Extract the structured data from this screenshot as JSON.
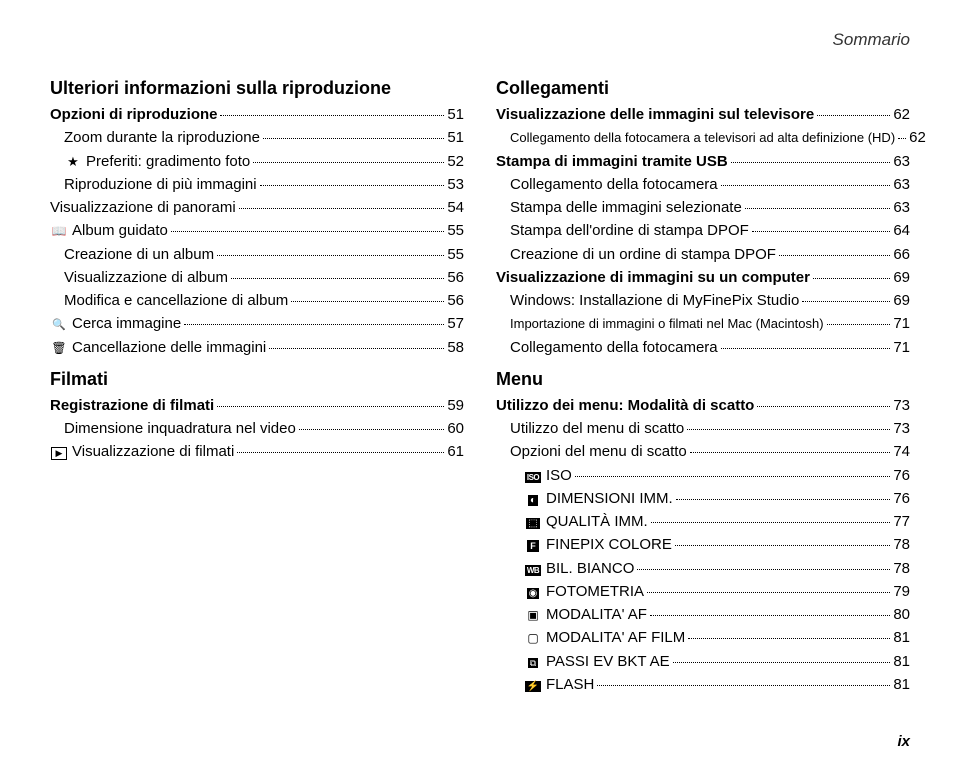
{
  "header": "Sommario",
  "page_number": "ix",
  "left": [
    {
      "type": "heading",
      "text": "Ulteriori informazioni sulla riproduzione"
    },
    {
      "label": "Opzioni di riproduzione",
      "page": "51",
      "bold": true
    },
    {
      "label": "Zoom durante la riproduzione",
      "page": "51",
      "indent": 1
    },
    {
      "label": "Preferiti: gradimento foto",
      "page": "52",
      "indent": 1,
      "icon": "ico-star"
    },
    {
      "label": "Riproduzione di più immagini",
      "page": "53",
      "indent": 1
    },
    {
      "label": "Visualizzazione di panorami",
      "page": "54"
    },
    {
      "label": "Album guidato",
      "page": "55",
      "icon": "ico-book"
    },
    {
      "label": "Creazione di un album",
      "page": "55",
      "indent": 1
    },
    {
      "label": "Visualizzazione di album",
      "page": "56",
      "indent": 1
    },
    {
      "label": "Modifica e cancellazione di album",
      "page": "56",
      "indent": 1
    },
    {
      "label": "Cerca immagine",
      "page": "57",
      "icon": "ico-search"
    },
    {
      "label": "Cancellazione delle immagini",
      "page": "58",
      "icon": "ico-trash"
    },
    {
      "type": "heading",
      "text": "Filmati"
    },
    {
      "label": "Registrazione di filmati",
      "page": "59",
      "bold": true
    },
    {
      "label": "Dimensione inquadratura nel video",
      "page": "60",
      "indent": 1
    },
    {
      "label": "Visualizzazione di filmati",
      "page": "61",
      "icon": "ico-play"
    }
  ],
  "right": [
    {
      "type": "heading",
      "text": "Collegamenti"
    },
    {
      "label": "Visualizzazione delle immagini sul televisore",
      "page": "62",
      "bold": true
    },
    {
      "label": "Collegamento della fotocamera a televisori ad alta definizione (HD)",
      "page": "62",
      "indent": 1,
      "small": true
    },
    {
      "label": "Stampa di immagini tramite USB",
      "page": "63",
      "bold": true
    },
    {
      "label": "Collegamento della fotocamera",
      "page": "63",
      "indent": 1
    },
    {
      "label": "Stampa delle immagini selezionate",
      "page": "63",
      "indent": 1
    },
    {
      "label": "Stampa dell'ordine di stampa DPOF",
      "page": "64",
      "indent": 1
    },
    {
      "label": "Creazione di un ordine di stampa DPOF",
      "page": "66",
      "indent": 1
    },
    {
      "label": "Visualizzazione di immagini su un computer",
      "page": "69",
      "bold": true
    },
    {
      "label": "Windows: Installazione di MyFinePix Studio",
      "page": "69",
      "indent": 1
    },
    {
      "label": "Importazione di immagini o filmati nel Mac (Macintosh)",
      "page": "71",
      "indent": 1,
      "small": true
    },
    {
      "label": "Collegamento della fotocamera",
      "page": "71",
      "indent": 1
    },
    {
      "type": "heading",
      "text": "Menu"
    },
    {
      "label": "Utilizzo dei menu: Modalità di scatto",
      "page": "73",
      "bold": true
    },
    {
      "label": "Utilizzo del menu di scatto",
      "page": "73",
      "indent": 1
    },
    {
      "label": "Opzioni del menu di scatto",
      "page": "74",
      "indent": 1
    },
    {
      "label": "ISO",
      "page": "76",
      "indent": 2,
      "icon": "ico-iso"
    },
    {
      "label": "DIMENSIONI IMM.",
      "page": "76",
      "indent": 2,
      "icon": "ico-dim"
    },
    {
      "label": "QUALITÀ IMM.",
      "page": "77",
      "indent": 2,
      "icon": "ico-qual"
    },
    {
      "label": "FINEPIX COLORE",
      "page": "78",
      "indent": 2,
      "icon": "ico-fpc"
    },
    {
      "label": "BIL. BIANCO",
      "page": "78",
      "indent": 2,
      "icon": "ico-wb"
    },
    {
      "label": "FOTOMETRIA",
      "page": "79",
      "indent": 2,
      "icon": "ico-meter"
    },
    {
      "label": "MODALITA' AF",
      "page": "80",
      "indent": 2,
      "icon": "ico-af"
    },
    {
      "label": "MODALITA' AF FILM",
      "page": "81",
      "indent": 2,
      "icon": "ico-affilm"
    },
    {
      "label": "PASSI EV BKT AE",
      "page": "81",
      "indent": 2,
      "icon": "ico-bkt"
    },
    {
      "label": "FLASH",
      "page": "81",
      "indent": 2,
      "icon": "ico-flash"
    }
  ]
}
